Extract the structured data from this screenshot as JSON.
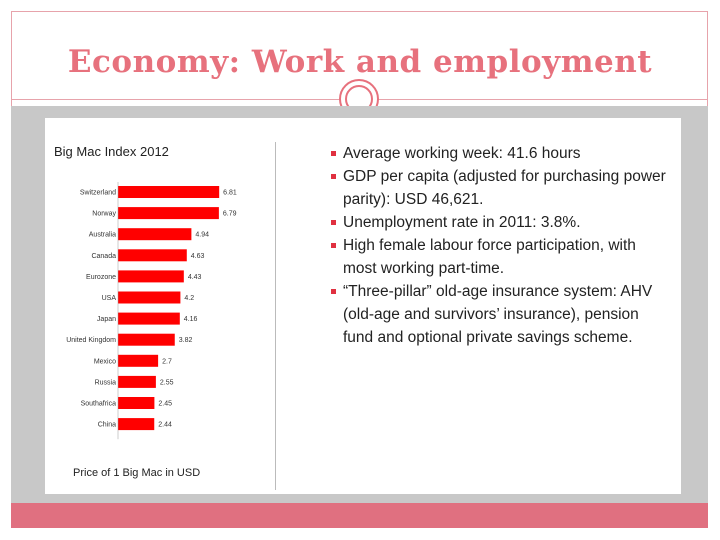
{
  "slide": {
    "title": "Economy: Work and employment"
  },
  "colors": {
    "accent": "#e7717d",
    "bar": "#ff0000",
    "footer": "#e07080"
  },
  "chart_data": {
    "type": "bar",
    "orientation": "horizontal",
    "title": "Big Mac Index 2012",
    "xlabel": "Price of 1 Big Mac in USD",
    "categories": [
      "Switzerland",
      "Norway",
      "Australia",
      "Canada",
      "Eurozone",
      "USA",
      "Japan",
      "United Kingdom",
      "Mexico",
      "Russia",
      "Southafrica",
      "China"
    ],
    "values": [
      6.81,
      6.79,
      4.94,
      4.63,
      4.43,
      4.2,
      4.16,
      3.82,
      2.7,
      2.55,
      2.45,
      2.44
    ],
    "value_labels": [
      "6.81",
      "6.79",
      "4.94",
      "4.63",
      "4.43",
      "4.2",
      "4.16",
      "3.82",
      "2.7",
      "2.55",
      "2.45",
      "2.44"
    ],
    "xlim": [
      0,
      7
    ],
    "grid": false
  },
  "bullets": [
    "Average working week: 41.6 hours",
    "GDP per capita (adjusted for purchasing power parity): USD 46,621.",
    "Unemployment rate in 2011: 3.8%.",
    "High female labour force participation, with most working part-time.",
    "“Three-pillar” old-age insurance system: AHV (old-age and survivors’ insurance), pension fund and optional private savings scheme."
  ]
}
